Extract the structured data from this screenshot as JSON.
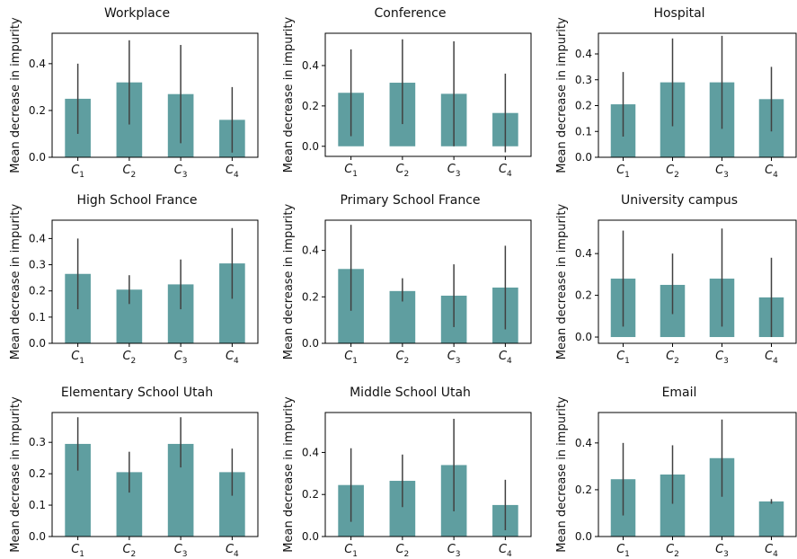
{
  "figure": {
    "bar_color": "#5f9ea0",
    "error_color": "#404040"
  },
  "chart_data": [
    {
      "type": "bar",
      "title": "Workplace",
      "ylabel": "Mean decrease in impurity",
      "categories": [
        "C1",
        "C2",
        "C3",
        "C4"
      ],
      "values": [
        0.25,
        0.32,
        0.27,
        0.16
      ],
      "err_low": [
        0.1,
        0.14,
        0.06,
        0.02
      ],
      "err_high": [
        0.4,
        0.5,
        0.48,
        0.3
      ],
      "ylim": [
        0,
        0.53
      ],
      "yticks": [
        0.0,
        0.2,
        0.4
      ]
    },
    {
      "type": "bar",
      "title": "Conference",
      "ylabel": "Mean decrease in impurity",
      "categories": [
        "C1",
        "C2",
        "C3",
        "C4"
      ],
      "values": [
        0.265,
        0.315,
        0.26,
        0.165
      ],
      "err_low": [
        0.05,
        0.11,
        0.0,
        -0.03
      ],
      "err_high": [
        0.48,
        0.53,
        0.52,
        0.36
      ],
      "ylim": [
        -0.05,
        0.56
      ],
      "yticks": [
        0.0,
        0.2,
        0.4
      ]
    },
    {
      "type": "bar",
      "title": "Hospital",
      "ylabel": "Mean decrease in impurity",
      "categories": [
        "C1",
        "C2",
        "C3",
        "C4"
      ],
      "values": [
        0.205,
        0.29,
        0.29,
        0.225
      ],
      "err_low": [
        0.08,
        0.12,
        0.11,
        0.1
      ],
      "err_high": [
        0.33,
        0.46,
        0.47,
        0.35
      ],
      "ylim": [
        0,
        0.48
      ],
      "yticks": [
        0.0,
        0.1,
        0.2,
        0.3,
        0.4
      ]
    },
    {
      "type": "bar",
      "title": "High School France",
      "ylabel": "Mean decrease in impurity",
      "categories": [
        "C1",
        "C2",
        "C3",
        "C4"
      ],
      "values": [
        0.265,
        0.205,
        0.225,
        0.305
      ],
      "err_low": [
        0.13,
        0.15,
        0.13,
        0.17
      ],
      "err_high": [
        0.4,
        0.26,
        0.32,
        0.44
      ],
      "ylim": [
        0,
        0.47
      ],
      "yticks": [
        0.0,
        0.1,
        0.2,
        0.3,
        0.4
      ]
    },
    {
      "type": "bar",
      "title": "Primary School France",
      "ylabel": "Mean decrease in impurity",
      "categories": [
        "C1",
        "C2",
        "C3",
        "C4"
      ],
      "values": [
        0.32,
        0.225,
        0.205,
        0.24
      ],
      "err_low": [
        0.14,
        0.18,
        0.07,
        0.06
      ],
      "err_high": [
        0.51,
        0.28,
        0.34,
        0.42
      ],
      "ylim": [
        0,
        0.53
      ],
      "yticks": [
        0.0,
        0.2,
        0.4
      ]
    },
    {
      "type": "bar",
      "title": "University campus",
      "ylabel": "Mean decrease in impurity",
      "categories": [
        "C1",
        "C2",
        "C3",
        "C4"
      ],
      "values": [
        0.28,
        0.25,
        0.28,
        0.19
      ],
      "err_low": [
        0.05,
        0.11,
        0.05,
        0.0
      ],
      "err_high": [
        0.51,
        0.4,
        0.52,
        0.38
      ],
      "ylim": [
        -0.03,
        0.56
      ],
      "yticks": [
        0.0,
        0.2,
        0.4
      ]
    },
    {
      "type": "bar",
      "title": "Elementary School Utah",
      "ylabel": "Mean decrease in impurity",
      "categories": [
        "C1",
        "C2",
        "C3",
        "C4"
      ],
      "values": [
        0.295,
        0.205,
        0.295,
        0.205
      ],
      "err_low": [
        0.21,
        0.14,
        0.22,
        0.13
      ],
      "err_high": [
        0.38,
        0.27,
        0.38,
        0.28
      ],
      "ylim": [
        0,
        0.395
      ],
      "yticks": [
        0.0,
        0.1,
        0.2,
        0.3
      ]
    },
    {
      "type": "bar",
      "title": "Middle School Utah",
      "ylabel": "Mean decrease in impurity",
      "categories": [
        "C1",
        "C2",
        "C3",
        "C4"
      ],
      "values": [
        0.245,
        0.265,
        0.34,
        0.15
      ],
      "err_low": [
        0.07,
        0.14,
        0.12,
        0.03
      ],
      "err_high": [
        0.42,
        0.39,
        0.56,
        0.27
      ],
      "ylim": [
        0,
        0.59
      ],
      "yticks": [
        0.0,
        0.2,
        0.4
      ]
    },
    {
      "type": "bar",
      "title": "Email",
      "ylabel": "Mean decrease in impurity",
      "categories": [
        "C1",
        "C2",
        "C3",
        "C4"
      ],
      "values": [
        0.245,
        0.265,
        0.335,
        0.15
      ],
      "err_low": [
        0.09,
        0.14,
        0.17,
        0.14
      ],
      "err_high": [
        0.4,
        0.39,
        0.5,
        0.16
      ],
      "ylim": [
        0,
        0.53
      ],
      "yticks": [
        0.0,
        0.2,
        0.4
      ]
    }
  ]
}
